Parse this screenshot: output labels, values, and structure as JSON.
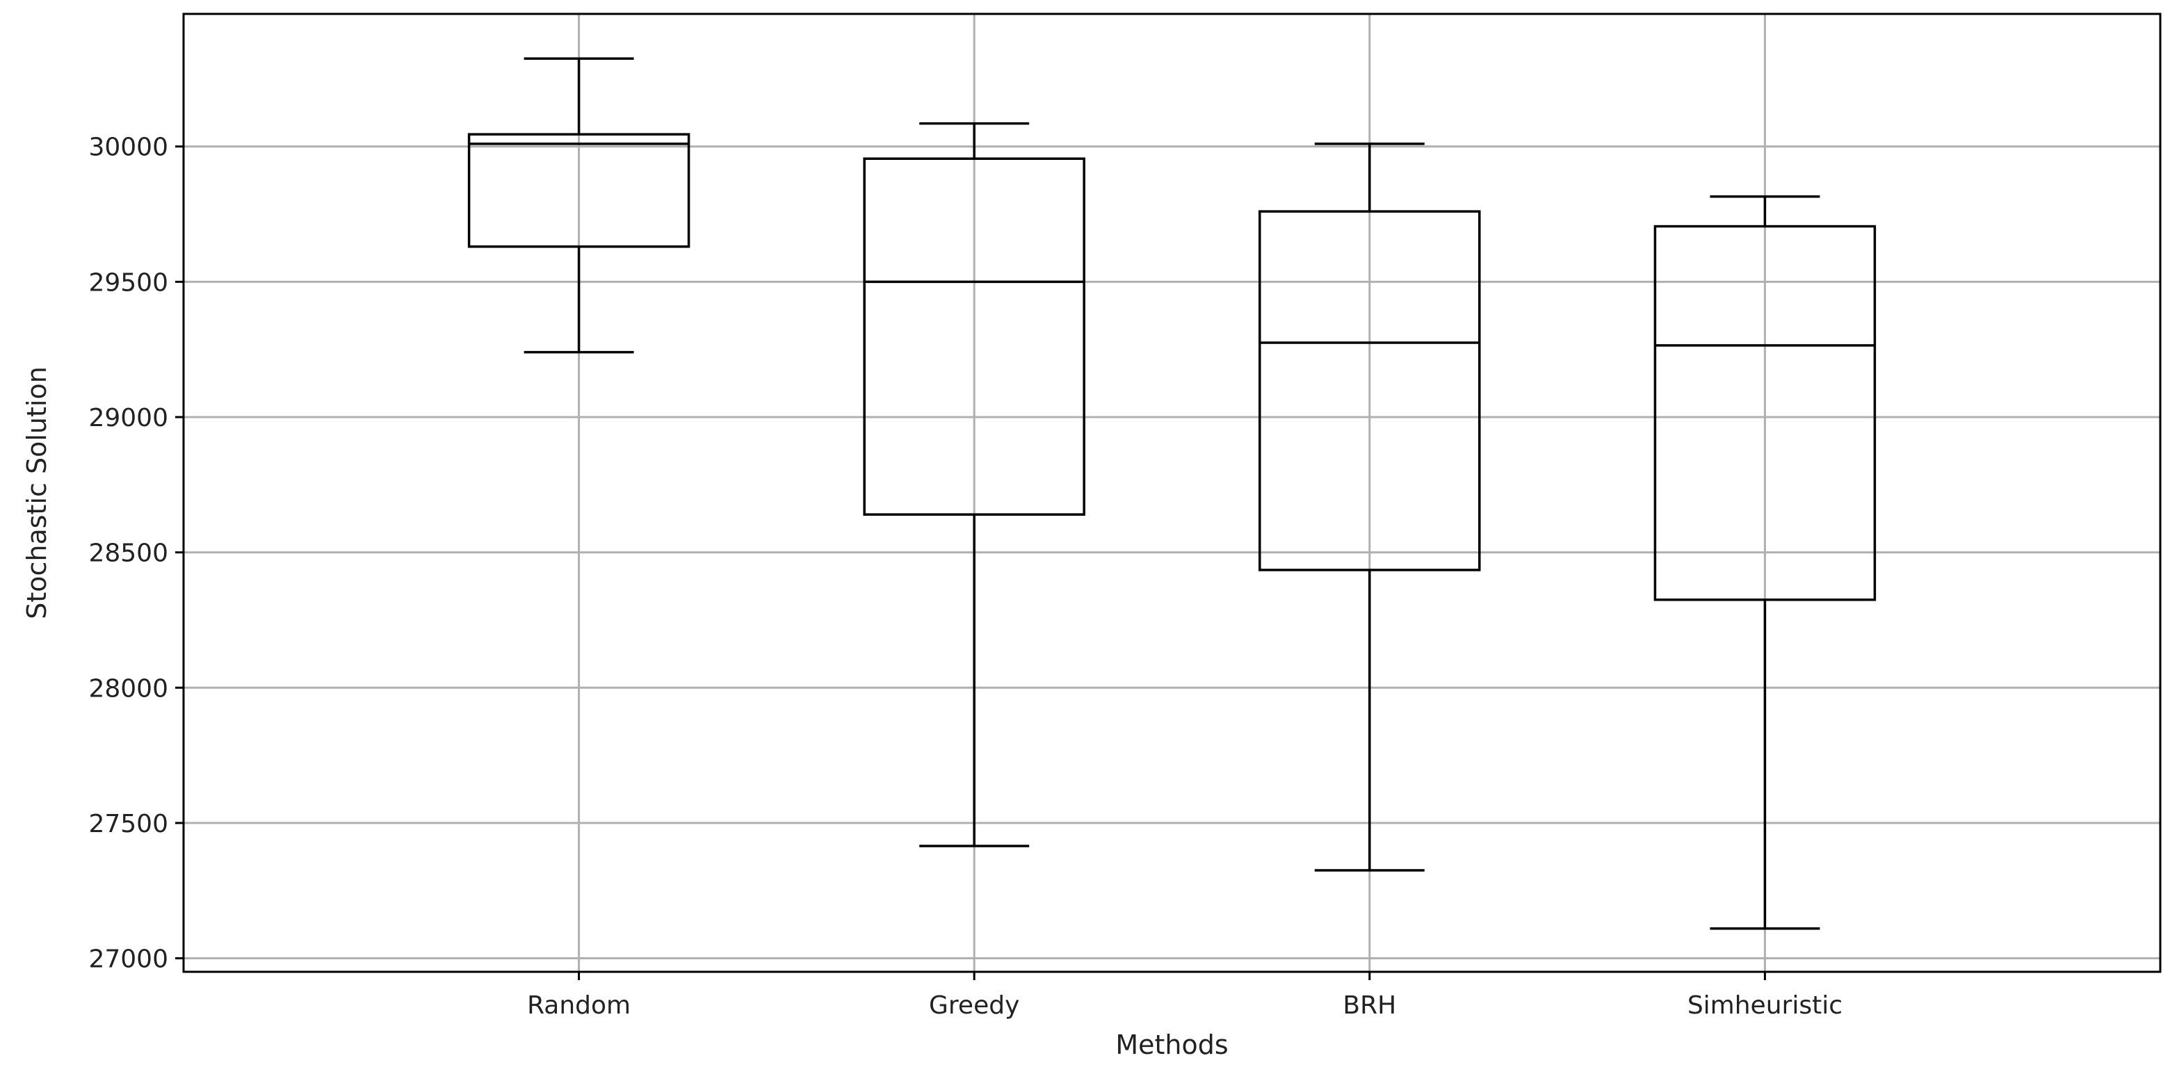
{
  "chart_data": {
    "type": "boxplot",
    "title": "",
    "xlabel": "Methods",
    "ylabel": "Stochastic Solution",
    "categories": [
      "Random",
      "Greedy",
      "BRH",
      "Simheuristic"
    ],
    "boxes": [
      {
        "label": "Random",
        "whisker_low": 29240,
        "q1": 29630,
        "median": 30010,
        "q3": 30045,
        "whisker_high": 30325
      },
      {
        "label": "Greedy",
        "whisker_low": 27415,
        "q1": 28640,
        "median": 29500,
        "q3": 29955,
        "whisker_high": 30085
      },
      {
        "label": "BRH",
        "whisker_low": 27325,
        "q1": 28435,
        "median": 29275,
        "q3": 29760,
        "whisker_high": 30010
      },
      {
        "label": "Simheuristic",
        "whisker_low": 27110,
        "q1": 28325,
        "median": 29265,
        "q3": 29705,
        "whisker_high": 29815
      }
    ],
    "ylim": [
      26950,
      30490
    ],
    "yticks": [
      27000,
      27500,
      28000,
      28500,
      29000,
      29500,
      30000
    ],
    "ytick_labels": [
      "27000",
      "27500",
      "28000",
      "28500",
      "29000",
      "29500",
      "30000"
    ],
    "grid": true,
    "colors": {
      "box": "#000000",
      "grid": "#b0b0b0",
      "frame": "#000000",
      "background": "#ffffff"
    }
  }
}
